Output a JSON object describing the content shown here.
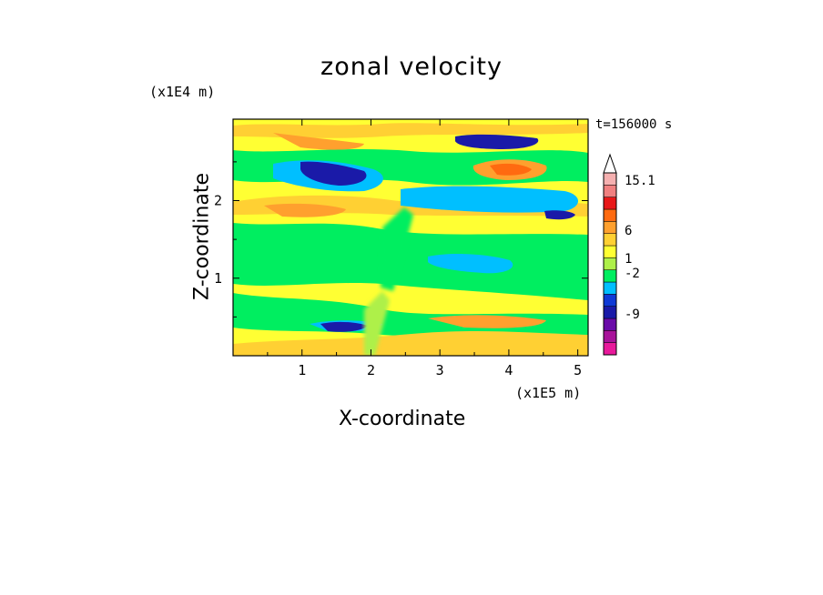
{
  "chart_data": {
    "type": "heatmap",
    "title": "zonal velocity",
    "xlabel": "X-coordinate",
    "ylabel": "Z-coordinate",
    "x_unit": "(x1E5 m)",
    "y_unit": "(x1E4 m)",
    "time_label": "t=156000 s",
    "xlim": [
      0,
      5.15
    ],
    "ylim": [
      0,
      3.05
    ],
    "x_ticks": [
      1,
      2,
      3,
      4,
      5
    ],
    "y_ticks": [
      1,
      2
    ],
    "colorbar": {
      "labels": [
        {
          "text": "15.1",
          "value": 15.1
        },
        {
          "text": "6",
          "value": 6
        },
        {
          "text": "1",
          "value": 1
        },
        {
          "text": "-2",
          "value": -2
        },
        {
          "text": "-9",
          "value": -9
        }
      ],
      "colors": [
        "#e8199b",
        "#a8129a",
        "#6a0ba8",
        "#1a1aa8",
        "#0f3ad6",
        "#00bfff",
        "#00ee60",
        "#aef04a",
        "#ffff33",
        "#ffd033",
        "#ffa02e",
        "#ff6a10",
        "#e81818",
        "#f08080",
        "#f5b0b0"
      ],
      "extends_max": true
    },
    "bands": [
      {
        "level": "yellow",
        "color": "#ffff33",
        "z": [
          0.0,
          3.05
        ],
        "x": [
          0,
          5.15
        ]
      },
      {
        "level": "green",
        "color": "#00ee60",
        "z": [
          2.4,
          2.7
        ],
        "x": [
          0,
          5.15
        ]
      },
      {
        "level": "green",
        "color": "#00ee60",
        "z": [
          1.15,
          1.85
        ],
        "x": [
          0,
          5.15
        ]
      },
      {
        "level": "green",
        "color": "#00ee60",
        "z": [
          0.05,
          0.6
        ],
        "x": [
          0,
          5.15
        ]
      },
      {
        "level": "cyan",
        "color": "#00bfff",
        "z": [
          2.3,
          2.6
        ],
        "x": [
          0,
          2.0
        ]
      },
      {
        "level": "blue",
        "color": "#1a1aa8",
        "z": [
          2.25,
          2.5
        ],
        "x": [
          1.0,
          2.0
        ]
      },
      {
        "level": "blue",
        "color": "#1a1aa8",
        "z": [
          2.75,
          2.9
        ],
        "x": [
          3.3,
          4.4
        ]
      },
      {
        "level": "orange",
        "color": "#ffa02e",
        "z": [
          2.2,
          2.4
        ],
        "x": [
          3.5,
          4.3
        ]
      },
      {
        "level": "orange",
        "color": "#ffa02e",
        "z": [
          1.8,
          1.95
        ],
        "x": [
          0.5,
          2.0
        ]
      }
    ]
  }
}
